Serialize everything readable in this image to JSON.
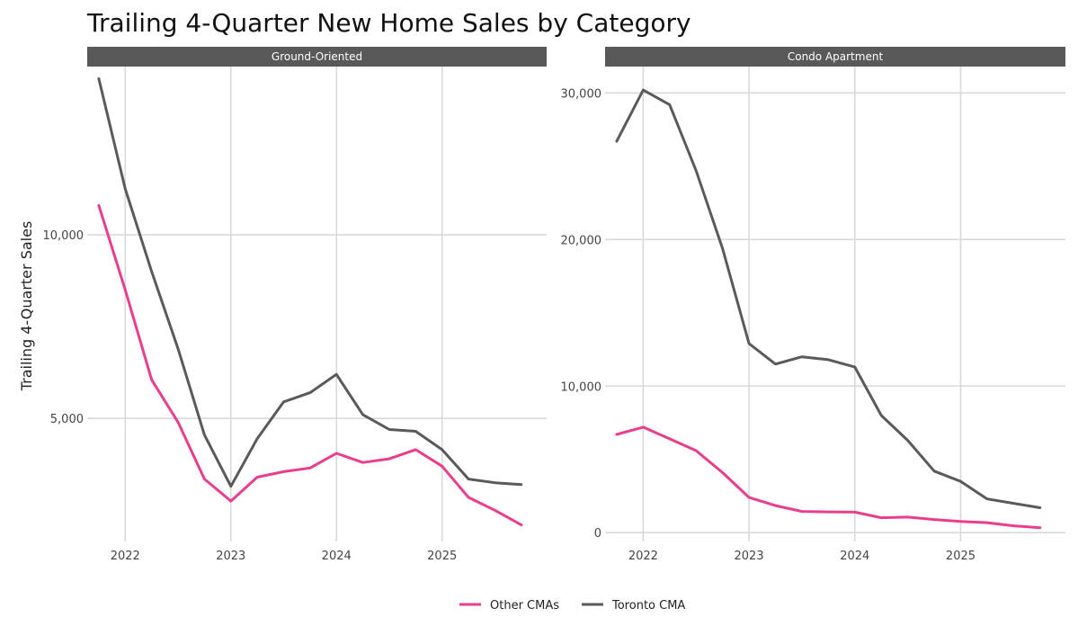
{
  "chart_data": {
    "type": "line",
    "title": "Trailing 4-Quarter New Home Sales by Category",
    "ylabel": "Trailing 4-Quarter Sales",
    "xlabel": "",
    "legend_position": "bottom",
    "colors": {
      "Other CMAs": "#e83e8c",
      "Toronto CMA": "#5a5a5a",
      "strip": "#595959"
    },
    "x": [
      2021.75,
      2022.0,
      2022.25,
      2022.5,
      2022.75,
      2023.0,
      2023.25,
      2023.5,
      2023.75,
      2024.0,
      2024.25,
      2024.5,
      2024.75,
      2025.0,
      2025.25,
      2025.5,
      2025.75
    ],
    "legend": [
      "Other CMAs",
      "Toronto CMA"
    ],
    "panels": [
      {
        "name": "Ground-Oriented",
        "xlim": [
          2021.64,
          2025.99
        ],
        "ylim": [
          1650,
          14580
        ],
        "x_ticks": [
          2022,
          2023,
          2024,
          2025
        ],
        "x_tick_labels": [
          "2022",
          "2023",
          "2024",
          "2025"
        ],
        "y_ticks": [
          5000,
          10000
        ],
        "y_tick_labels": [
          "5,000",
          "10,000"
        ],
        "series": [
          {
            "name": "Toronto CMA",
            "values": [
              14250,
              11250,
              9000,
              6900,
              4550,
              3150,
              4450,
              5450,
              5700,
              6200,
              5100,
              4700,
              4650,
              4150,
              3350,
              3250,
              3200
            ]
          },
          {
            "name": "Other CMAs",
            "values": [
              10800,
              8500,
              6050,
              4900,
              3350,
              2750,
              3400,
              3550,
              3650,
              4050,
              3800,
              3900,
              4150,
              3700,
              2850,
              2500,
              2100
            ]
          }
        ]
      },
      {
        "name": "Condo Apartment",
        "xlim": [
          2021.64,
          2025.99
        ],
        "ylim": [
          -600,
          31800
        ],
        "x_ticks": [
          2022,
          2023,
          2024,
          2025
        ],
        "x_tick_labels": [
          "2022",
          "2023",
          "2024",
          "2025"
        ],
        "y_ticks": [
          0,
          10000,
          20000,
          30000
        ],
        "y_tick_labels": [
          "0",
          "10,000",
          "20,000",
          "30,000"
        ],
        "series": [
          {
            "name": "Toronto CMA",
            "values": [
              26700,
              30200,
              29200,
              24700,
              19400,
              12900,
              11500,
              12000,
              11800,
              11300,
              8000,
              6300,
              4200,
              3500,
              2300,
              2000,
              1700
            ]
          },
          {
            "name": "Other CMAs",
            "values": [
              6700,
              7200,
              6400,
              5600,
              4100,
              2400,
              1850,
              1450,
              1420,
              1400,
              1020,
              1060,
              900,
              760,
              680,
              470,
              340
            ]
          }
        ]
      }
    ]
  }
}
